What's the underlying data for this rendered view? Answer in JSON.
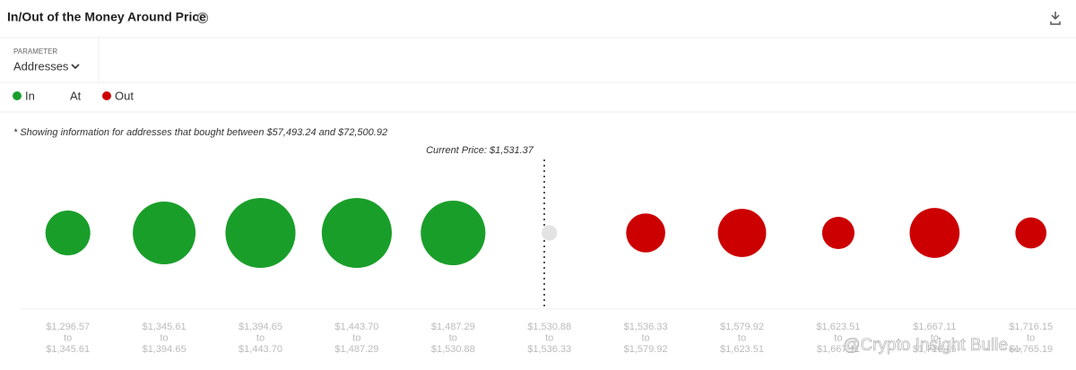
{
  "header": {
    "title": "In/Out of the Money Around Price"
  },
  "parameter": {
    "label": "PARAMETER",
    "value": "Addresses"
  },
  "chart_data": {
    "type": "bubble",
    "note": "* Showing information for addresses that bought between $57,493.24 and $72,500.92",
    "annotation": "Current Price: $1,531.37",
    "categories": [
      [
        "$1,296.57",
        "to",
        "$1,345.61"
      ],
      [
        "$1,345.61",
        "to",
        "$1,394.65"
      ],
      [
        "$1,394.65",
        "to",
        "$1,443.70"
      ],
      [
        "$1,443.70",
        "to",
        "$1,487.29"
      ],
      [
        "$1,487.29",
        "to",
        "$1,530.88"
      ],
      [
        "$1,530.88",
        "to",
        "$1,536.33"
      ],
      [
        "$1,536.33",
        "to",
        "$1,579.92"
      ],
      [
        "$1,579.92",
        "to",
        "$1,623.51"
      ],
      [
        "$1,623.51",
        "to",
        "$1,667.11"
      ],
      [
        "$1,667.11",
        "to",
        "$1,716.15"
      ],
      [
        "$1,716.15",
        "to",
        "$1,765.19"
      ]
    ],
    "series": [
      {
        "name": "In",
        "color": "#1a9e2a",
        "values": [
          25,
          49,
          61,
          61,
          52,
          null,
          null,
          null,
          null,
          null,
          null
        ]
      },
      {
        "name": "At",
        "color": "#e3e3e3",
        "values": [
          null,
          null,
          null,
          null,
          null,
          3,
          null,
          null,
          null,
          null,
          null
        ]
      },
      {
        "name": "Out",
        "color": "#cc0000",
        "values": [
          null,
          null,
          null,
          null,
          null,
          null,
          19,
          29,
          13,
          31,
          12
        ]
      }
    ],
    "watermark": "@Crypto Insight Bulle..."
  }
}
